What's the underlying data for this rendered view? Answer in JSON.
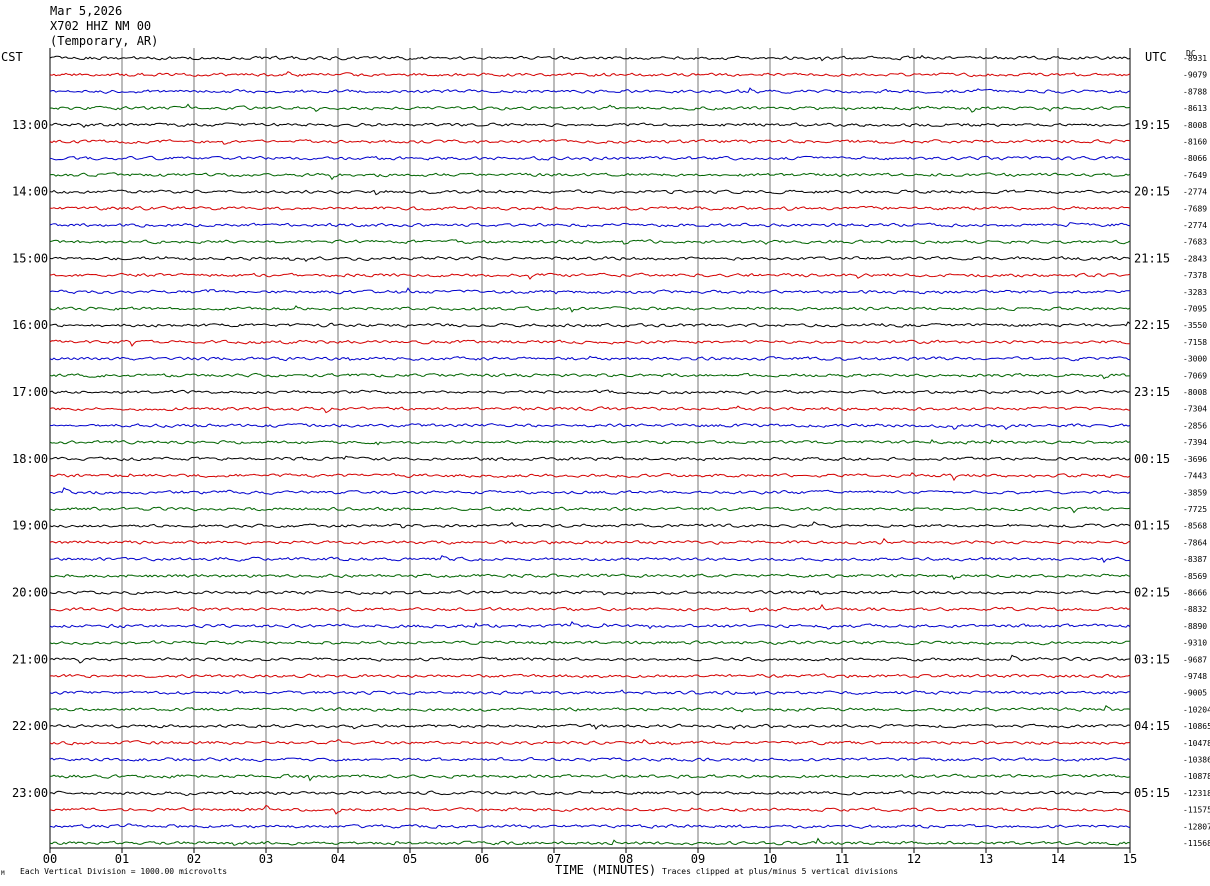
{
  "header": {
    "date": "Mar 5,2026",
    "station": "X702 HHZ NM 00",
    "network_note": "(Temporary, AR)"
  },
  "labels": {
    "left_tz": "CST",
    "right_tz": "UTC",
    "dc_label": "DC",
    "x_title": "TIME (MINUTES)",
    "scale_note": "Each Vertical Division = 1000.00 microvolts",
    "clip_note": "Traces clipped at plus/minus 5 vertical divisions",
    "corner_mark": "M"
  },
  "colors": {
    "trace_cycle": [
      "#000000",
      "#d40000",
      "#0000cc",
      "#006400"
    ],
    "grid": "#000000"
  },
  "chart_data": {
    "type": "line",
    "subtype": "helicorder",
    "xlabel": "TIME (MINUTES)",
    "xlim": [
      0,
      15
    ],
    "x_ticks": [
      "00",
      "01",
      "02",
      "03",
      "04",
      "05",
      "06",
      "07",
      "08",
      "09",
      "10",
      "11",
      "12",
      "13",
      "14",
      "15"
    ],
    "left_hour_labels": [
      "13:00",
      "14:00",
      "15:00",
      "16:00",
      "17:00",
      "18:00",
      "19:00",
      "20:00",
      "21:00",
      "22:00",
      "23:00"
    ],
    "right_hour_labels": [
      "19:15",
      "20:15",
      "21:15",
      "22:15",
      "23:15",
      "00:15",
      "01:15",
      "02:15",
      "03:15",
      "04:15",
      "05:15"
    ],
    "dc_offsets": [
      "-8931",
      "-9079",
      "-8788",
      "-8613",
      "-8008",
      "-8160",
      "-8066",
      "-7649",
      "-2774",
      "-7689",
      "-2774",
      "-7683",
      "-2843",
      "-7378",
      "-3283",
      "-7095",
      "-3550",
      "-7158",
      "-3000",
      "-7069",
      "-8008",
      "-7304",
      "-2856",
      "-7394",
      "-3696",
      "-7443",
      "-3859",
      "-7725",
      "-8568",
      "-7864",
      "-8387",
      "-8569",
      "-8666",
      "-8832",
      "-8890",
      "-9310",
      "-9687",
      "-9748",
      "-9005",
      "-10204",
      "-10865",
      "-10478",
      "-10386",
      "-10878",
      "-12318",
      "-11575",
      "-12807",
      "-11568"
    ],
    "trace_count": 48,
    "grid": "vertical lines each minute",
    "clip_divisions": 5
  }
}
